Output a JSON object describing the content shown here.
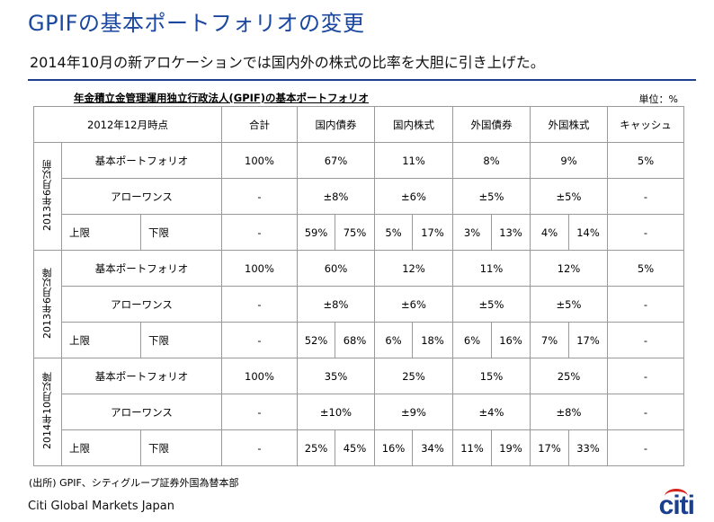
{
  "title": "GPIFの基本ポートフォリオの変更",
  "subtitle": "2014年10月の新アロケーションでは国内外の株式の比率を大胆に引き上げた。",
  "table_title": "年金積立金管理運用独立行政法人(GPIF)の基本ポートフォリオ",
  "unit": "単位：%",
  "header": {
    "as_of": "2012年12月時点",
    "total": "合計",
    "dom_bond": "国内債券",
    "dom_equity": "国内株式",
    "for_bond": "外国債券",
    "for_equity": "外国株式",
    "cash": "キャッシュ"
  },
  "row_labels": {
    "base": "基本ポートフォリオ",
    "allowance": "アローワンス",
    "upper": "上限",
    "lower": "下限"
  },
  "periods": [
    {
      "label": "2013年6月以前",
      "base": {
        "total": "100%",
        "dom_bond": "67%",
        "dom_equity": "11%",
        "for_bond": "8%",
        "for_equity": "9%",
        "cash": "5%"
      },
      "allowance": {
        "total": "-",
        "dom_bond": "±8%",
        "dom_equity": "±6%",
        "for_bond": "±5%",
        "for_equity": "±5%",
        "cash": "-"
      },
      "limits": {
        "total": "-",
        "dom_bond": [
          "59%",
          "75%"
        ],
        "dom_equity": [
          "5%",
          "17%"
        ],
        "for_bond": [
          "3%",
          "13%"
        ],
        "for_equity": [
          "4%",
          "14%"
        ],
        "cash": "-"
      }
    },
    {
      "label": "2013年6月以降",
      "base": {
        "total": "100%",
        "dom_bond": "60%",
        "dom_equity": "12%",
        "for_bond": "11%",
        "for_equity": "12%",
        "cash": "5%"
      },
      "allowance": {
        "total": "-",
        "dom_bond": "±8%",
        "dom_equity": "±6%",
        "for_bond": "±5%",
        "for_equity": "±5%",
        "cash": "-"
      },
      "limits": {
        "total": "-",
        "dom_bond": [
          "52%",
          "68%"
        ],
        "dom_equity": [
          "6%",
          "18%"
        ],
        "for_bond": [
          "6%",
          "16%"
        ],
        "for_equity": [
          "7%",
          "17%"
        ],
        "cash": "-"
      }
    },
    {
      "label": "2014年10月以降",
      "base": {
        "total": "100%",
        "dom_bond": "35%",
        "dom_equity": "25%",
        "for_bond": "15%",
        "for_equity": "25%",
        "cash": "-"
      },
      "allowance": {
        "total": "-",
        "dom_bond": "±10%",
        "dom_equity": "±9%",
        "for_bond": "±4%",
        "for_equity": "±8%",
        "cash": "-"
      },
      "limits": {
        "total": "-",
        "dom_bond": [
          "25%",
          "45%"
        ],
        "dom_equity": [
          "16%",
          "34%"
        ],
        "for_bond": [
          "11%",
          "19%"
        ],
        "for_equity": [
          "17%",
          "33%"
        ],
        "cash": "-"
      }
    }
  ],
  "source": "(出所) GPIF、シティグループ証券外国為替本部",
  "footer": "Citi Global Markets Japan",
  "logo_text": "citi",
  "colors": {
    "title": "#1a47a0",
    "rule": "#1f3f8f",
    "logo": "#1b3f8f",
    "logo_arc": "#d6241f"
  }
}
